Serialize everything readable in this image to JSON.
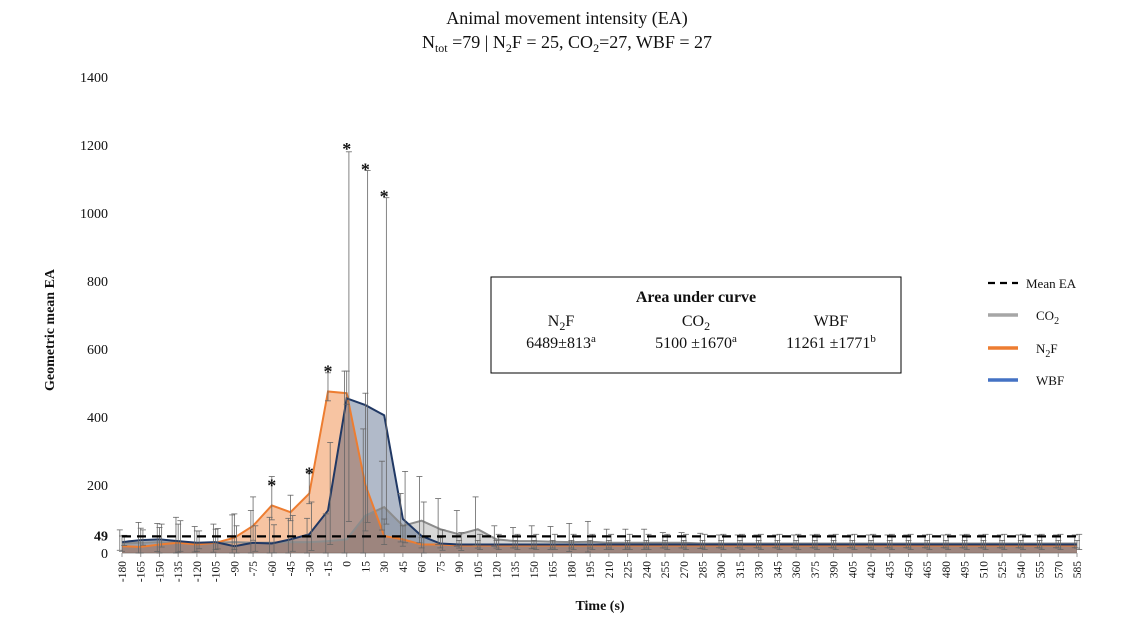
{
  "chart_data": {
    "type": "area",
    "title": "Animal movement intensity (EA)",
    "subtitle": {
      "n_main": "N",
      "n_tot_sub": "tot",
      "n_tot_val": " =79 | N",
      "n2f_sub": "2",
      "n2f_val": "F = 25, CO",
      "co2_sub": "2",
      "co2_val": "=27, WBF = 27"
    },
    "xlabel": "Time (s)",
    "ylabel": "Geometric mean EA",
    "ylim": [
      0,
      1400
    ],
    "yticks": [
      0,
      200,
      400,
      600,
      800,
      1000,
      1200,
      1400
    ],
    "mean_ea": 49,
    "mean_ea_label": "49",
    "x": [
      -180,
      -165,
      -150,
      -135,
      -120,
      -105,
      -90,
      -75,
      -60,
      -45,
      -30,
      -15,
      0,
      15,
      30,
      45,
      60,
      75,
      90,
      105,
      120,
      135,
      150,
      165,
      180,
      195,
      210,
      225,
      240,
      255,
      270,
      285,
      300,
      315,
      330,
      345,
      360,
      375,
      390,
      405,
      420,
      435,
      450,
      465,
      480,
      495,
      510,
      525,
      540,
      555,
      570,
      585
    ],
    "series": [
      {
        "name": "CO2",
        "color": "#a6a6a6",
        "fill": "rgba(166,166,166,0.45)",
        "values": [
          28,
          30,
          32,
          30,
          28,
          30,
          32,
          30,
          30,
          32,
          32,
          35,
          40,
          110,
          135,
          80,
          95,
          70,
          55,
          70,
          40,
          35,
          35,
          33,
          32,
          33,
          30,
          30,
          30,
          30,
          30,
          28,
          28,
          28,
          28,
          28,
          28,
          28,
          28,
          28,
          28,
          28,
          28,
          28,
          28,
          28,
          28,
          28,
          28,
          28,
          28,
          28
        ],
        "err": [
          40,
          60,
          55,
          75,
          50,
          55,
          80,
          95,
          75,
          70,
          70,
          80,
          495,
          255,
          135,
          95,
          130,
          90,
          70,
          95,
          40,
          40,
          45,
          45,
          55,
          60,
          40,
          40,
          40,
          30,
          30,
          30,
          25,
          25,
          25,
          25,
          25,
          25,
          25,
          25,
          25,
          25,
          25,
          25,
          25,
          25,
          25,
          25,
          25,
          25,
          25,
          25
        ]
      },
      {
        "name": "N2F",
        "color": "#ed7d31",
        "fill": "rgba(237,125,49,0.45)",
        "values": [
          20,
          18,
          25,
          30,
          25,
          30,
          45,
          80,
          140,
          120,
          175,
          475,
          470,
          200,
          50,
          40,
          25,
          25,
          22,
          22,
          22,
          22,
          22,
          22,
          22,
          22,
          22,
          22,
          22,
          22,
          22,
          22,
          22,
          22,
          22,
          22,
          22,
          22,
          22,
          22,
          22,
          22,
          22,
          22,
          22,
          22,
          22,
          22,
          22,
          22,
          22,
          22
        ],
        "err": [
          30,
          55,
          50,
          55,
          40,
          40,
          70,
          85,
          85,
          50,
          60,
          55,
          65,
          270,
          50,
          40,
          20,
          20,
          15,
          15,
          15,
          15,
          15,
          15,
          15,
          15,
          15,
          15,
          15,
          15,
          15,
          15,
          15,
          15,
          15,
          15,
          15,
          15,
          15,
          15,
          15,
          15,
          15,
          15,
          15,
          15,
          15,
          15,
          15,
          15,
          15,
          15
        ]
      },
      {
        "name": "WBF",
        "color": "#4472c4",
        "fill": "rgba(31,56,100,0.35)",
        "values": [
          32,
          38,
          40,
          35,
          30,
          32,
          20,
          30,
          28,
          40,
          55,
          125,
          455,
          435,
          405,
          100,
          50,
          28,
          25,
          25,
          25,
          25,
          25,
          25,
          25,
          25,
          25,
          25,
          25,
          25,
          25,
          25,
          25,
          25,
          25,
          25,
          25,
          25,
          25,
          25,
          25,
          25,
          25,
          25,
          25,
          25,
          25,
          25,
          25,
          25,
          25,
          25
        ],
        "err": [
          20,
          30,
          45,
          60,
          35,
          40,
          60,
          50,
          55,
          70,
          95,
          200,
          725,
          690,
          640,
          140,
          100,
          40,
          35,
          30,
          30,
          30,
          30,
          30,
          30,
          30,
          30,
          30,
          30,
          30,
          30,
          30,
          30,
          30,
          30,
          30,
          30,
          30,
          30,
          30,
          30,
          30,
          30,
          30,
          30,
          30,
          30,
          30,
          30,
          30,
          30,
          30
        ]
      }
    ],
    "significance": [
      {
        "x": -60,
        "y": 210,
        "label": "*"
      },
      {
        "x": -30,
        "y": 245,
        "label": "*"
      },
      {
        "x": -15,
        "y": 545,
        "label": "*"
      },
      {
        "x": 0,
        "y": 1200,
        "label": "*"
      },
      {
        "x": 15,
        "y": 1140,
        "label": "*"
      },
      {
        "x": 30,
        "y": 1060,
        "label": "*"
      }
    ],
    "legend": {
      "placement": "right",
      "items": [
        {
          "label": "Mean EA",
          "style": "dashed",
          "color": "#000000"
        },
        {
          "label": "CO",
          "sub": "2",
          "color": "#a6a6a6"
        },
        {
          "label": "N",
          "sub": "2",
          "suffix": "F",
          "color": "#ed7d31"
        },
        {
          "label": "WBF",
          "color": "#4472c4"
        }
      ]
    },
    "auc_box": {
      "title": "Area under curve",
      "columns": [
        {
          "head": "N",
          "head_sub": "2",
          "head_suffix": "F",
          "value": "6489±813",
          "sup": "a"
        },
        {
          "head": "CO",
          "head_sub": "2",
          "head_suffix": "",
          "value": "5100 ±1670",
          "sup": "a"
        },
        {
          "head": "WBF",
          "head_sub": "",
          "head_suffix": "",
          "value": "11261 ±1771",
          "sup": "b"
        }
      ]
    }
  }
}
